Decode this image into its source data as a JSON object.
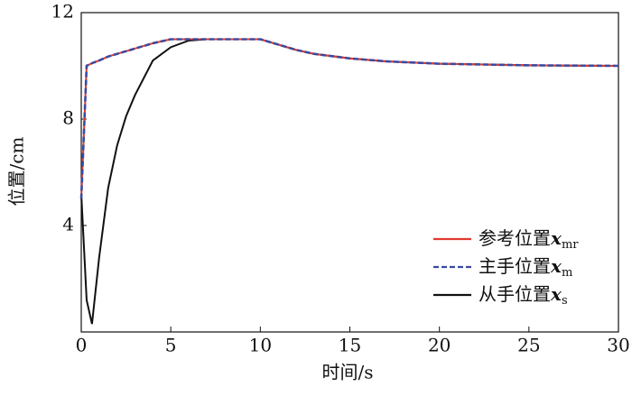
{
  "chart_data": {
    "type": "line",
    "xlabel": "时间/s",
    "ylabel": "位置/cm",
    "x": [
      0,
      0.3,
      0.6,
      1,
      1.5,
      2,
      2.5,
      3,
      4,
      5,
      6,
      7,
      8,
      10,
      11,
      12,
      13,
      15,
      17,
      20,
      25,
      30
    ],
    "series": [
      {
        "name": "参考位置",
        "symbol": "x",
        "subscript": "mr",
        "color": "#e03a2f",
        "dash": false,
        "values": [
          5,
          10,
          10.1,
          10.2,
          10.35,
          10.45,
          10.55,
          10.65,
          10.85,
          11,
          11,
          11,
          11,
          11,
          10.8,
          10.6,
          10.45,
          10.28,
          10.17,
          10.08,
          10.02,
          10.0
        ]
      },
      {
        "name": "主手位置",
        "symbol": "x",
        "subscript": "m",
        "color": "#3c4aa0",
        "dash": true,
        "values": [
          5,
          10,
          10.1,
          10.2,
          10.35,
          10.45,
          10.55,
          10.65,
          10.85,
          11,
          11,
          11,
          11,
          11,
          10.8,
          10.6,
          10.45,
          10.28,
          10.17,
          10.08,
          10.02,
          10.0
        ]
      },
      {
        "name": "从手位置",
        "symbol": "x",
        "subscript": "s",
        "color": "#111111",
        "dash": false,
        "values": [
          5.2,
          1.2,
          0.3,
          2.8,
          5.4,
          7.0,
          8.1,
          8.9,
          10.2,
          10.7,
          10.95,
          11,
          11,
          11,
          10.8,
          10.6,
          10.45,
          10.28,
          10.17,
          10.08,
          10.02,
          10.0
        ]
      }
    ],
    "xlim": [
      0,
      30
    ],
    "xticks": [
      0,
      5,
      10,
      15,
      20,
      25,
      30
    ],
    "ylim": [
      0,
      12
    ],
    "yticks": [
      4,
      8,
      12
    ],
    "legend": "lower right"
  }
}
